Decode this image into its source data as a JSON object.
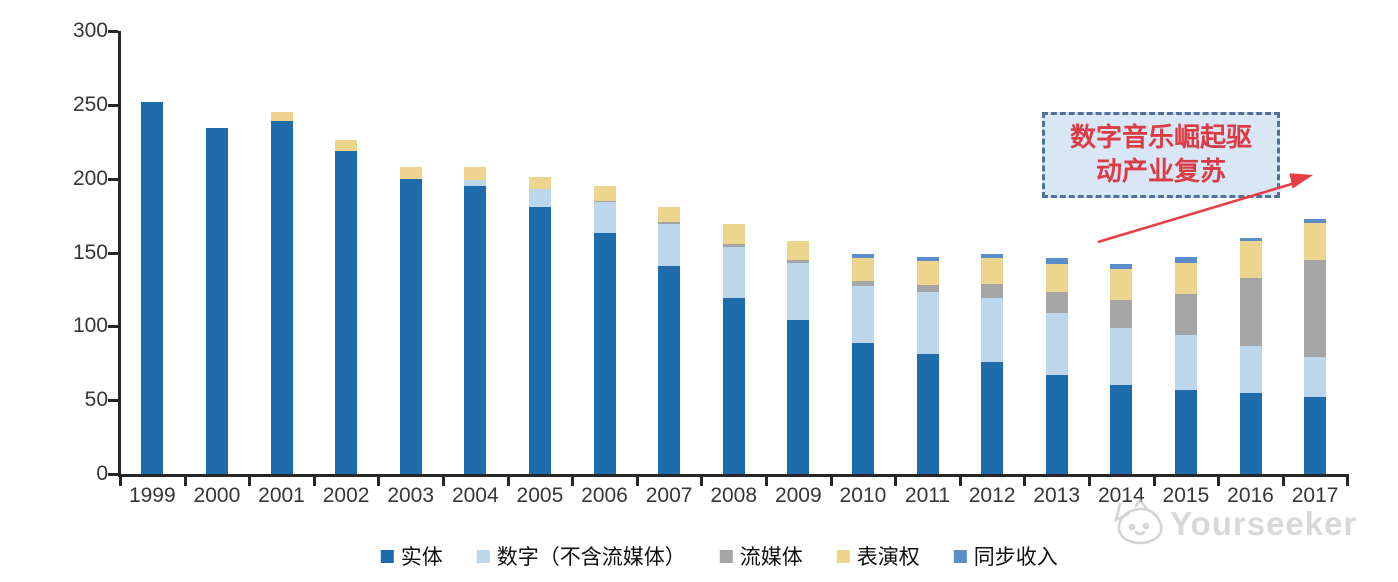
{
  "page": {
    "background": "#ffffff"
  },
  "axes": {
    "y_tick_labels": [
      "0",
      "50",
      "100",
      "150",
      "200",
      "250",
      "300"
    ],
    "x_tick_labels": [
      "1999",
      "2000",
      "2001",
      "2002",
      "2003",
      "2004",
      "2005",
      "2006",
      "2007",
      "2008",
      "2009",
      "2010",
      "2011",
      "2012",
      "2013",
      "2014",
      "2015",
      "2016",
      "2017"
    ]
  },
  "annotation": {
    "lines": [
      "数字音乐崛起驱",
      "动产业复苏"
    ],
    "text_color": "#DC3B43",
    "box_fill": "#D9E6F6",
    "box_border": "#50719C",
    "arrow_color": "#E83C45"
  },
  "watermark": {
    "brand": "Yourseeker",
    "logo_icon": "cat-logo-icon",
    "color": "#c3c3c3"
  },
  "chart_data": {
    "type": "bar",
    "stacked": true,
    "categories": [
      "1999",
      "2000",
      "2001",
      "2002",
      "2003",
      "2004",
      "2005",
      "2006",
      "2007",
      "2008",
      "2009",
      "2010",
      "2011",
      "2012",
      "2013",
      "2014",
      "2015",
      "2016",
      "2017"
    ],
    "series": [
      {
        "key": "physical",
        "name": "实体",
        "color": "#1F6CAD",
        "values": [
          252,
          234,
          239,
          219,
          200,
          195,
          181,
          163,
          141,
          119,
          104,
          89,
          81,
          76,
          67,
          60,
          57,
          55,
          52
        ]
      },
      {
        "key": "digital-ex-streaming",
        "name": "数字（不含流媒体）",
        "color": "#BCD6EC",
        "values": [
          0,
          0,
          0,
          0,
          0,
          4,
          12,
          21,
          28,
          35,
          39,
          38,
          42,
          43,
          42,
          39,
          37,
          32,
          27
        ]
      },
      {
        "key": "streaming",
        "name": "流媒体",
        "color": "#A5A5A5",
        "values": [
          0,
          0,
          0,
          0,
          0,
          0,
          0,
          1,
          2,
          2,
          2,
          4,
          5,
          10,
          14,
          19,
          28,
          46,
          66
        ]
      },
      {
        "key": "performance-rights",
        "name": "表演权",
        "color": "#EDD58E",
        "values": [
          0,
          0,
          6,
          7,
          8,
          9,
          8,
          10,
          10,
          13,
          13,
          15,
          16,
          17,
          19,
          21,
          21,
          25,
          25
        ]
      },
      {
        "key": "sync-revenue",
        "name": "同步收入",
        "color": "#5B8EC9",
        "values": [
          0,
          0,
          0,
          0,
          0,
          0,
          0,
          0,
          0,
          0,
          0,
          3,
          3,
          3,
          4,
          3,
          4,
          2,
          3
        ]
      }
    ],
    "totals": [
      252,
      234,
      245,
      226,
      208,
      208,
      201,
      195,
      181,
      169,
      158,
      149,
      147,
      149,
      146,
      142,
      147,
      160,
      173
    ],
    "ylim": [
      0,
      300
    ],
    "yticks": [
      0,
      50,
      100,
      150,
      200,
      250,
      300
    ],
    "grid": false,
    "legend_position": "bottom",
    "annotation_text": "数字音乐崛起驱动产业复苏"
  }
}
